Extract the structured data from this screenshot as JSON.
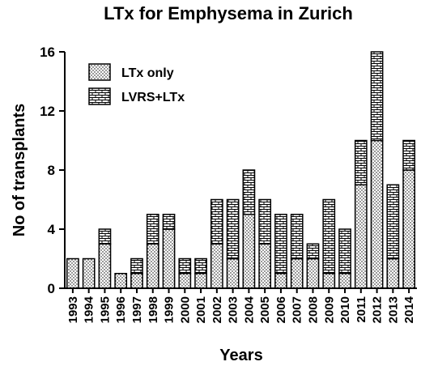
{
  "chart_data": {
    "type": "bar",
    "stacked": true,
    "title": "LTx for Emphysema in Zurich",
    "xlabel": "Years",
    "ylabel": "No of transplants",
    "ylim": [
      0,
      16
    ],
    "yticks": [
      "0",
      "4",
      "8",
      "12",
      "16"
    ],
    "categories": [
      "1993",
      "1994",
      "1995",
      "1996",
      "1997",
      "1998",
      "1999",
      "2000",
      "2001",
      "2002",
      "2003",
      "2004",
      "2005",
      "2006",
      "2007",
      "2008",
      "2009",
      "2010",
      "2011",
      "2012",
      "2013",
      "2014"
    ],
    "series": [
      {
        "name": "LTx only",
        "pattern": "dots",
        "values": [
          2,
          2,
          3,
          1,
          1,
          3,
          4,
          1,
          1,
          3,
          2,
          5,
          3,
          1,
          2,
          2,
          1,
          1,
          7,
          10,
          2,
          8
        ]
      },
      {
        "name": "LVRS+LTx",
        "pattern": "brick",
        "values": [
          0,
          0,
          1,
          0,
          1,
          2,
          1,
          1,
          1,
          3,
          4,
          3,
          3,
          4,
          3,
          1,
          5,
          3,
          3,
          6,
          5,
          2
        ]
      }
    ],
    "legend_position": "top-left",
    "grid": false
  }
}
